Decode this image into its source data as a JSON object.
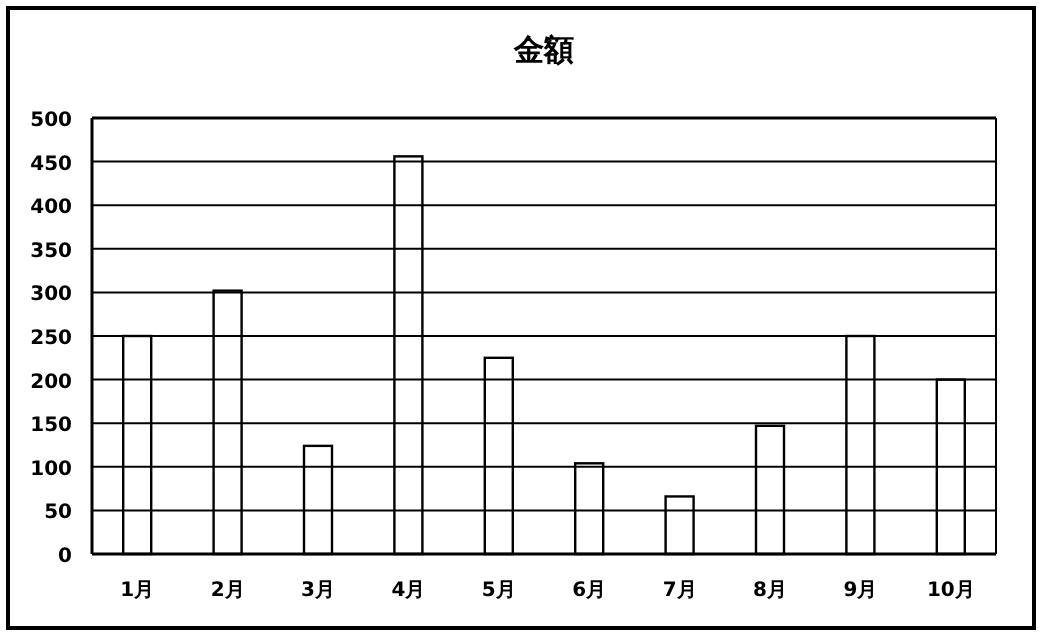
{
  "chart_data": {
    "type": "bar",
    "title": "金額",
    "categories": [
      "1月",
      "2月",
      "3月",
      "4月",
      "5月",
      "6月",
      "7月",
      "8月",
      "9月",
      "10月"
    ],
    "values": [
      250,
      302,
      124,
      456,
      225,
      104,
      66,
      147,
      250,
      200
    ],
    "color": "#000000",
    "ylim": [
      0,
      500
    ],
    "yticks": [
      0,
      50,
      100,
      150,
      200,
      250,
      300,
      350,
      400,
      450,
      500
    ],
    "grid": "y"
  }
}
